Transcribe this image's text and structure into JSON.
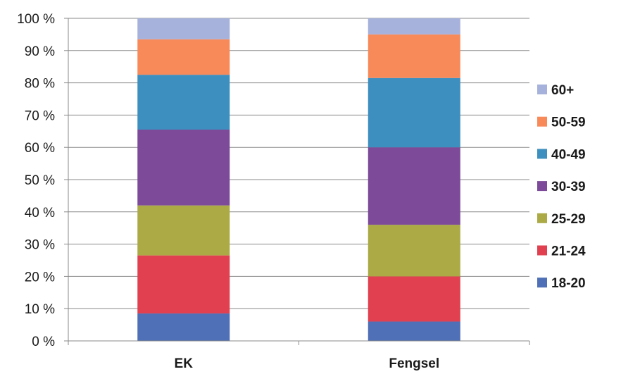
{
  "chart_data": {
    "type": "bar",
    "stacked": true,
    "percent": true,
    "categories": [
      "EK",
      "Fengsel"
    ],
    "ylim": [
      0,
      100
    ],
    "yticks": [
      "0 %",
      "10 %",
      "20 %",
      "30 %",
      "40 %",
      "50 %",
      "60 %",
      "70 %",
      "80 %",
      "90 %",
      "100 %"
    ],
    "grid": true,
    "legend_position": "right",
    "series": [
      {
        "name": "18-20",
        "color": "#4f6fb7",
        "values": [
          8.5,
          6
        ]
      },
      {
        "name": "21-24",
        "color": "#e0404f",
        "values": [
          18,
          14
        ]
      },
      {
        "name": "25-29",
        "color": "#abaa45",
        "values": [
          15.5,
          16
        ]
      },
      {
        "name": "30-39",
        "color": "#7c4a99",
        "values": [
          23.5,
          24
        ]
      },
      {
        "name": "40-49",
        "color": "#3d8fbf",
        "values": [
          17,
          21.5
        ]
      },
      {
        "name": "50-59",
        "color": "#f88a5a",
        "values": [
          11,
          13.5
        ]
      },
      {
        "name": "60+",
        "color": "#a7b2dc",
        "values": [
          6.5,
          5
        ]
      }
    ]
  }
}
